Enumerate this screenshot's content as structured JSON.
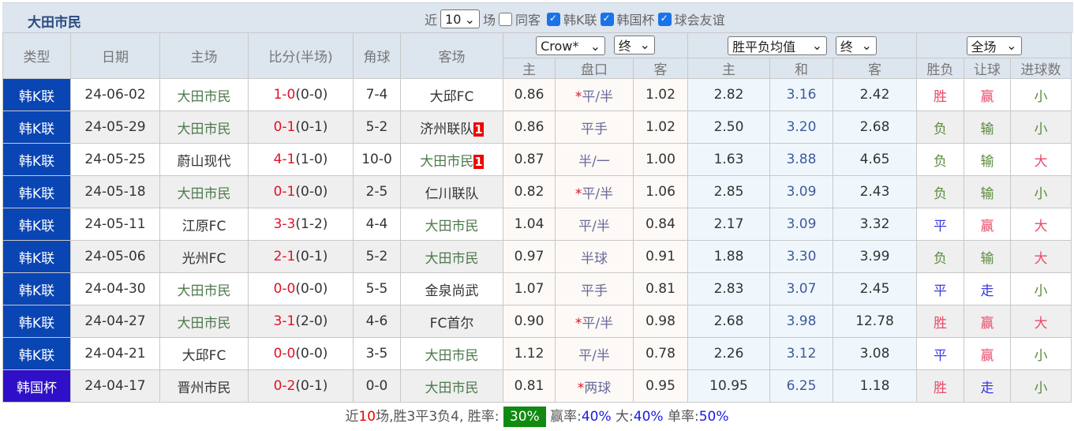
{
  "header": {
    "title": "大田市民",
    "recent_prefix": "近",
    "recent_count": "10",
    "recent_suffix": "场",
    "filters": [
      {
        "label": "同客",
        "checked": false
      },
      {
        "label": "韩K联",
        "checked": true
      },
      {
        "label": "韩国杯",
        "checked": true
      },
      {
        "label": "球会友谊",
        "checked": true
      }
    ]
  },
  "columns": {
    "type": "类型",
    "date": "日期",
    "home": "主场",
    "score": "比分(半场)",
    "corner": "角球",
    "away": "客场",
    "company_select": "Crow*",
    "odds_time_select": "终",
    "avg_select": "胜平负均值",
    "avg_time_select": "终",
    "period_select": "全场",
    "odds_home": "主",
    "handicap": "盘口",
    "odds_away": "客",
    "avg_home": "主",
    "avg_draw": "和",
    "avg_away": "客",
    "result": "胜负",
    "hcap_result": "让球",
    "ou": "进球数"
  },
  "rows": [
    {
      "type": "韩K联",
      "date": "24-06-02",
      "home": "大田市民",
      "score": "1-0",
      "half": "(0-0)",
      "corner": "7-4",
      "away": "大邱FC",
      "away_badge": "",
      "oh": "0.86",
      "star": "*",
      "hc": "平/半",
      "oa": "1.02",
      "ah": "2.82",
      "ad": "3.16",
      "aa": "2.42",
      "res": "胜",
      "hres": "赢",
      "ou": "小"
    },
    {
      "type": "韩K联",
      "date": "24-05-29",
      "home": "大田市民",
      "score": "0-1",
      "half": "(0-1)",
      "corner": "5-2",
      "away": "济州联队",
      "away_badge": "1",
      "oh": "0.86",
      "star": "",
      "hc": "平手",
      "oa": "1.02",
      "ah": "2.50",
      "ad": "3.20",
      "aa": "2.68",
      "res": "负",
      "hres": "输",
      "ou": "小"
    },
    {
      "type": "韩K联",
      "date": "24-05-25",
      "home": "蔚山现代",
      "score": "4-1",
      "half": "(1-0)",
      "corner": "10-0",
      "away": "大田市民",
      "away_badge": "1",
      "oh": "0.87",
      "star": "",
      "hc": "半/一",
      "oa": "1.00",
      "ah": "1.63",
      "ad": "3.88",
      "aa": "4.65",
      "res": "负",
      "hres": "输",
      "ou": "大"
    },
    {
      "type": "韩K联",
      "date": "24-05-18",
      "home": "大田市民",
      "score": "0-1",
      "half": "(0-0)",
      "corner": "2-5",
      "away": "仁川联队",
      "away_badge": "",
      "oh": "0.82",
      "star": "*",
      "hc": "平/半",
      "oa": "1.06",
      "ah": "2.85",
      "ad": "3.09",
      "aa": "2.43",
      "res": "负",
      "hres": "输",
      "ou": "小"
    },
    {
      "type": "韩K联",
      "date": "24-05-11",
      "home": "江原FC",
      "score": "3-3",
      "half": "(1-2)",
      "corner": "4-4",
      "away": "大田市民",
      "away_badge": "",
      "oh": "1.04",
      "star": "",
      "hc": "平/半",
      "oa": "0.84",
      "ah": "2.17",
      "ad": "3.09",
      "aa": "3.32",
      "res": "平",
      "hres": "赢",
      "ou": "大"
    },
    {
      "type": "韩K联",
      "date": "24-05-06",
      "home": "光州FC",
      "score": "2-1",
      "half": "(0-1)",
      "corner": "5-2",
      "away": "大田市民",
      "away_badge": "",
      "oh": "0.97",
      "star": "",
      "hc": "半球",
      "oa": "0.91",
      "ah": "1.88",
      "ad": "3.30",
      "aa": "3.99",
      "res": "负",
      "hres": "输",
      "ou": "大"
    },
    {
      "type": "韩K联",
      "date": "24-04-30",
      "home": "大田市民",
      "score": "0-0",
      "half": "(0-0)",
      "corner": "5-5",
      "away": "金泉尚武",
      "away_badge": "",
      "oh": "1.07",
      "star": "",
      "hc": "平手",
      "oa": "0.81",
      "ah": "2.83",
      "ad": "3.07",
      "aa": "2.45",
      "res": "平",
      "hres": "走",
      "ou": "小"
    },
    {
      "type": "韩K联",
      "date": "24-04-27",
      "home": "大田市民",
      "score": "3-1",
      "half": "(2-0)",
      "corner": "4-6",
      "away": "FC首尔",
      "away_badge": "",
      "oh": "0.90",
      "star": "*",
      "hc": "平/半",
      "oa": "0.98",
      "ah": "2.68",
      "ad": "3.98",
      "aa": "12.78",
      "res": "胜",
      "hres": "赢",
      "ou": "大"
    },
    {
      "type": "韩K联",
      "date": "24-04-21",
      "home": "大邱FC",
      "score": "0-0",
      "half": "(0-0)",
      "corner": "3-5",
      "away": "大田市民",
      "away_badge": "",
      "oh": "1.12",
      "star": "",
      "hc": "平/半",
      "oa": "0.78",
      "ah": "2.26",
      "ad": "3.12",
      "aa": "3.08",
      "res": "平",
      "hres": "赢",
      "ou": "小"
    },
    {
      "type": "韩国杯",
      "date": "24-04-17",
      "home": "晋州市民",
      "score": "0-2",
      "half": "(0-1)",
      "corner": "0-0",
      "away": "大田市民",
      "away_badge": "",
      "oh": "0.81",
      "star": "*",
      "hc": "两球",
      "oa": "0.95",
      "ah": "10.95",
      "ad": "6.25",
      "aa": "1.18",
      "res": "胜",
      "hres": "走",
      "ou": "小"
    }
  ],
  "footer": {
    "p1": "近",
    "count": "10",
    "p2": "场,胜3平3负4, 胜率:",
    "win_rate": "30%",
    "p3": "赢率:",
    "hcap_rate": "40%",
    "p4": "大:",
    "over_rate": "40%",
    "p5": "单率:",
    "odd_rate": "50%"
  }
}
